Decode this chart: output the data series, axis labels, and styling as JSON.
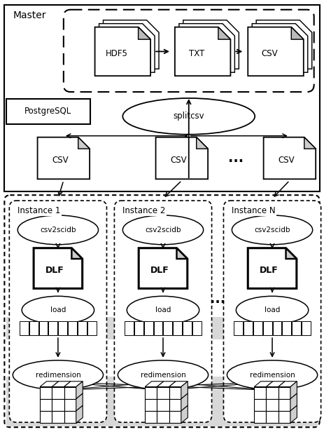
{
  "bg_color": "#ffffff",
  "master_label": "Master",
  "postgresql_label": "PostgreSQL",
  "splitcsv_label": "splitcsv",
  "hdf5_label": "HDF5",
  "txt_label": "TXT",
  "csv_label": "CSV",
  "csv2scidb_label": "csv2scidb",
  "dlf_label": "DLF",
  "load_label": "load",
  "redimension_label": "redimension",
  "instances": [
    "Instance 1",
    "Instance 2",
    "Instance N"
  ],
  "dots": "...",
  "gray_strip": "#d8d8d8",
  "gray_cube_bg": "#d8d8d8"
}
